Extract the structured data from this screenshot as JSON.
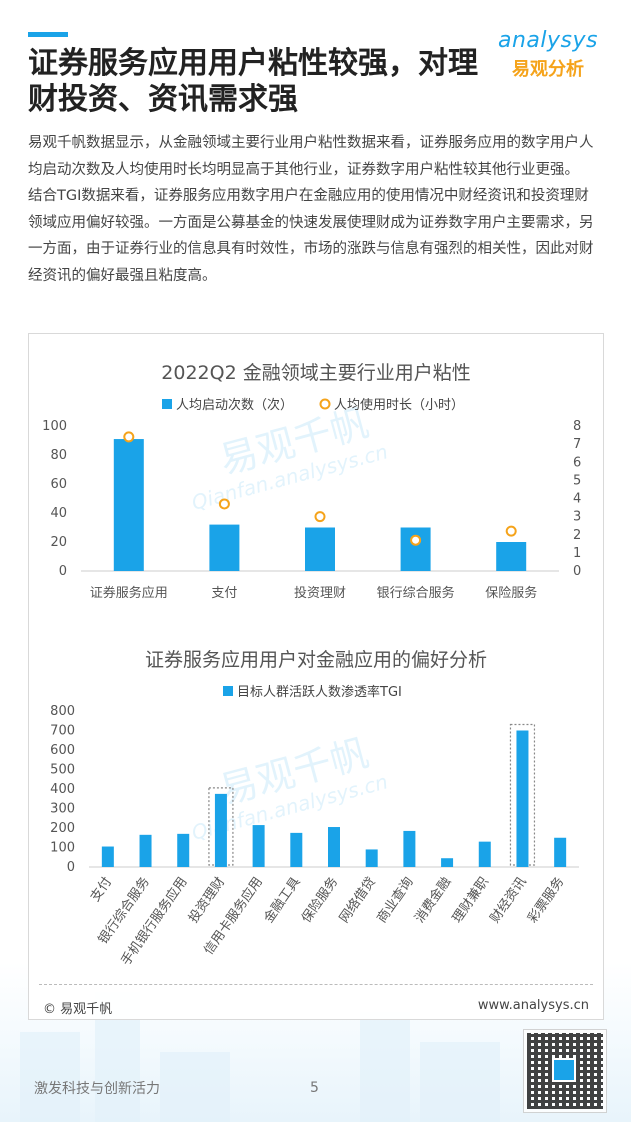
{
  "header": {
    "title": "证券服务应用用户粘性较强，对理财投资、资讯需求强",
    "logo_en": "analysys",
    "logo_cn": "易观分析"
  },
  "body": {
    "paragraph1": "易观千帆数据显示，从金融领域主要行业用户粘性数据来看，证券服务应用的数字用户人均启动次数及人均使用时长均明显高于其他行业，证券数字用户粘性较其他行业更强。",
    "paragraph2": "结合TGI数据来看，证券服务应用数字用户在金融应用的使用情况中财经资讯和投资理财领域应用偏好较强。一方面是公募基金的快速发展使理财成为证券数字用户主要需求，另一方面，由于证券行业的信息具有时效性，市场的涨跌与信息有强烈的相关性，因此对财经资讯的偏好最强且粘度高。"
  },
  "watermark": {
    "cn": "易观千帆",
    "en": "Qianfan.analysys.cn"
  },
  "footer": {
    "copyright": "© 易观千帆",
    "website": "www.analysys.cn",
    "slogan": "激发科技与创新活力",
    "page_number": "5"
  },
  "colors": {
    "accent": "#1aa3e8",
    "bar": "#1aa3e8",
    "marker": "#f5a31a"
  },
  "chart_data": [
    {
      "type": "bar",
      "title": "2022Q2 金融领域主要行业用户粘性",
      "categories": [
        "证券服务应用",
        "支付",
        "投资理财",
        "银行综合服务",
        "保险服务"
      ],
      "series": [
        {
          "name": "人均启动次数（次）",
          "kind": "bar",
          "axis": "left",
          "values": [
            91,
            32,
            30,
            30,
            20
          ]
        },
        {
          "name": "人均使用时长（小时）",
          "kind": "scatter",
          "axis": "right",
          "values": [
            7.4,
            3.7,
            3.0,
            1.7,
            2.2
          ]
        }
      ],
      "ylim_left": [
        0,
        100
      ],
      "yticks_left": [
        0,
        20,
        40,
        60,
        80,
        100
      ],
      "ylim_right": [
        0,
        8
      ],
      "yticks_right": [
        0,
        1,
        2,
        3,
        4,
        5,
        6,
        7,
        8
      ],
      "legend_position": "top",
      "grid": false
    },
    {
      "type": "bar",
      "title": "证券服务应用用户对金融应用的偏好分析",
      "categories": [
        "支付",
        "银行综合服务",
        "手机银行服务应用",
        "投资理财",
        "信用卡服务应用",
        "金融工具",
        "保险服务",
        "网络借贷",
        "商业查询",
        "消费金融",
        "理财兼职",
        "财经资讯",
        "彩票服务"
      ],
      "series": [
        {
          "name": "目标人群活跃人数渗透率TGI",
          "values": [
            105,
            165,
            170,
            375,
            215,
            175,
            205,
            90,
            185,
            45,
            130,
            700,
            150
          ]
        }
      ],
      "highlighted": [
        "投资理财",
        "财经资讯"
      ],
      "ylim": [
        0,
        800
      ],
      "yticks": [
        0,
        100,
        200,
        300,
        400,
        500,
        600,
        700,
        800
      ],
      "legend_position": "top",
      "grid": false
    }
  ]
}
